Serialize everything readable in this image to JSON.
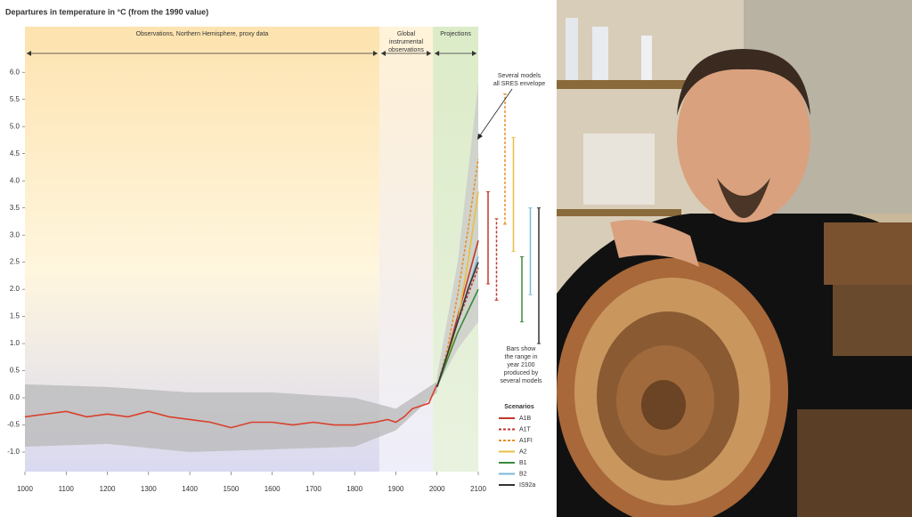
{
  "chart_data": {
    "type": "line",
    "title": "Departures in temperature in °C (from the 1990 value)",
    "regions": [
      {
        "label": [
          "Observations, Northern Hemisphere, proxy data"
        ],
        "x": [
          1000,
          1860
        ],
        "color": "#fde3b0"
      },
      {
        "label": [
          "Global",
          "instrumental",
          "observations"
        ],
        "x": [
          1860,
          1990
        ],
        "color": "#fff3da"
      },
      {
        "label": [
          "Projections"
        ],
        "x": [
          1990,
          2100
        ],
        "color": "#dcebc8"
      }
    ],
    "xlim": [
      1000,
      2100
    ],
    "xticks": [
      1000,
      1100,
      1200,
      1300,
      1400,
      1500,
      1600,
      1700,
      1800,
      1900,
      2000,
      2100
    ],
    "ylim": [
      -1.36,
      6.84
    ],
    "yticks": [
      {
        "value": -1.0,
        "label": "-1.0"
      },
      {
        "value": -0.5,
        "label": "-0.5"
      },
      {
        "value": 0,
        "label": "0.0"
      },
      {
        "value": 0.5,
        "label": "0.5"
      },
      {
        "value": 1.0,
        "label": "1.0"
      },
      {
        "value": 1.5,
        "label": "1.5"
      },
      {
        "value": 2.0,
        "label": "2.0"
      },
      {
        "value": 2.5,
        "label": "2.5"
      },
      {
        "value": 3.0,
        "label": "3.0"
      },
      {
        "value": 3.5,
        "label": "3.5"
      },
      {
        "value": 4.0,
        "label": "4.0"
      },
      {
        "value": 4.5,
        "label": "4.5"
      },
      {
        "value": 5.0,
        "label": "5.0"
      },
      {
        "value": 5.5,
        "label": "5.5"
      },
      {
        "value": 6.0,
        "label": "6.0"
      }
    ],
    "grid": false,
    "uncertainty": {
      "color": "#b8b8b8",
      "x": [
        1000,
        1200,
        1400,
        1600,
        1800,
        1900,
        2000
      ],
      "low": [
        -0.9,
        -0.85,
        -1.0,
        -0.95,
        -0.9,
        -0.6,
        0.1
      ],
      "high": [
        0.25,
        0.2,
        0.1,
        0.1,
        0.0,
        -0.2,
        0.3
      ]
    },
    "observed": {
      "color": "#d9402a",
      "x": [
        1000,
        1050,
        1100,
        1150,
        1200,
        1250,
        1300,
        1350,
        1400,
        1450,
        1500,
        1550,
        1600,
        1650,
        1700,
        1750,
        1800,
        1850,
        1880,
        1900,
        1920,
        1940,
        1960,
        1980,
        2000
      ],
      "values": [
        -0.35,
        -0.3,
        -0.25,
        -0.35,
        -0.3,
        -0.35,
        -0.25,
        -0.35,
        -0.4,
        -0.45,
        -0.55,
        -0.45,
        -0.45,
        -0.5,
        -0.45,
        -0.5,
        -0.5,
        -0.45,
        -0.4,
        -0.45,
        -0.35,
        -0.2,
        -0.15,
        -0.1,
        0.25
      ]
    },
    "envelope": {
      "label": [
        "Several models",
        "all SRES envelope"
      ],
      "color": "#c9c9c9",
      "x": [
        2000,
        2050,
        2100
      ],
      "low": [
        0.2,
        0.9,
        1.4
      ],
      "high": [
        0.4,
        2.5,
        5.8
      ]
    },
    "projection_x": [
      2000,
      2025,
      2050,
      2075,
      2100
    ],
    "series": [
      {
        "name": "A1B",
        "color": "#c0392b",
        "dashed": false,
        "values": [
          0.2,
          0.8,
          1.5,
          2.2,
          2.9
        ],
        "range": [
          2.1,
          3.8
        ]
      },
      {
        "name": "A1T",
        "color": "#c0392b",
        "dashed": true,
        "values": [
          0.2,
          0.8,
          1.4,
          1.9,
          2.4
        ],
        "range": [
          1.8,
          3.3
        ]
      },
      {
        "name": "A1FI",
        "color": "#e8902a",
        "dashed": true,
        "values": [
          0.2,
          0.9,
          1.9,
          3.1,
          4.4
        ],
        "range": [
          3.2,
          5.6
        ]
      },
      {
        "name": "A2",
        "color": "#e8c040",
        "dashed": false,
        "values": [
          0.2,
          0.7,
          1.4,
          2.5,
          3.8
        ],
        "range": [
          2.7,
          4.8
        ]
      },
      {
        "name": "B1",
        "color": "#3a8a3a",
        "dashed": false,
        "values": [
          0.2,
          0.7,
          1.2,
          1.6,
          2.0
        ],
        "range": [
          1.4,
          2.6
        ]
      },
      {
        "name": "B2",
        "color": "#7ab8d8",
        "dashed": false,
        "values": [
          0.2,
          0.8,
          1.4,
          2.0,
          2.6
        ],
        "range": [
          1.9,
          3.5
        ]
      },
      {
        "name": "IS92a",
        "color": "#333333",
        "dashed": false,
        "values": [
          0.2,
          0.8,
          1.4,
          2.0,
          2.5
        ],
        "range": [
          1.0,
          3.5
        ]
      }
    ],
    "bars_note": [
      "Bars show",
      "the range in",
      "year 2100",
      "produced by",
      "several models"
    ],
    "legend_title": "Scenarios"
  }
}
